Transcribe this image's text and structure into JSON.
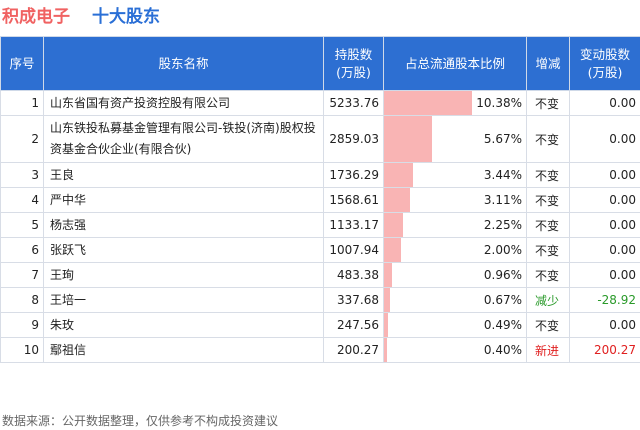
{
  "header": {
    "stock_name": "积成电子",
    "subtitle": "十大股东"
  },
  "columns": [
    "序号",
    "股东名称",
    "持股数\n(万股)",
    "占总流通股本比例",
    "增减",
    "变动股数\n(万股)"
  ],
  "rows": [
    {
      "idx": "1",
      "name": "山东省国有资产投资控股有限公司",
      "shares": "5233.76",
      "pct": "10.38%",
      "pct_value": 10.38,
      "change": "不变",
      "change_type": "same",
      "delta": "0.00"
    },
    {
      "idx": "2",
      "name": "山东铁投私募基金管理有限公司-铁投(济南)股权投资基金合伙企业(有限合伙)",
      "shares": "2859.03",
      "pct": "5.67%",
      "pct_value": 5.67,
      "change": "不变",
      "change_type": "same",
      "delta": "0.00"
    },
    {
      "idx": "3",
      "name": "王良",
      "shares": "1736.29",
      "pct": "3.44%",
      "pct_value": 3.44,
      "change": "不变",
      "change_type": "same",
      "delta": "0.00"
    },
    {
      "idx": "4",
      "name": "严中华",
      "shares": "1568.61",
      "pct": "3.11%",
      "pct_value": 3.11,
      "change": "不变",
      "change_type": "same",
      "delta": "0.00"
    },
    {
      "idx": "5",
      "name": "杨志强",
      "shares": "1133.17",
      "pct": "2.25%",
      "pct_value": 2.25,
      "change": "不变",
      "change_type": "same",
      "delta": "0.00"
    },
    {
      "idx": "6",
      "name": "张跃飞",
      "shares": "1007.94",
      "pct": "2.00%",
      "pct_value": 2.0,
      "change": "不变",
      "change_type": "same",
      "delta": "0.00"
    },
    {
      "idx": "7",
      "name": "王珣",
      "shares": "483.38",
      "pct": "0.96%",
      "pct_value": 0.96,
      "change": "不变",
      "change_type": "same",
      "delta": "0.00"
    },
    {
      "idx": "8",
      "name": "王培一",
      "shares": "337.68",
      "pct": "0.67%",
      "pct_value": 0.67,
      "change": "减少",
      "change_type": "decrease",
      "delta": "-28.92"
    },
    {
      "idx": "9",
      "name": "朱玫",
      "shares": "247.56",
      "pct": "0.49%",
      "pct_value": 0.49,
      "change": "不变",
      "change_type": "same",
      "delta": "0.00"
    },
    {
      "idx": "10",
      "name": "鄢祖信",
      "shares": "200.27",
      "pct": "0.40%",
      "pct_value": 0.4,
      "change": "新进",
      "change_type": "new",
      "delta": "200.27"
    }
  ],
  "footer": {
    "source": "数据来源：公开数据整理，仅供参考不构成投资建议"
  },
  "colors": {
    "header_bg": "#2d6fd2",
    "bar": "#f9b4b4",
    "decrease": "#2a9a2a",
    "increase": "#e02020",
    "stock_name": "#f06262",
    "subtitle": "#2a6fd6"
  }
}
